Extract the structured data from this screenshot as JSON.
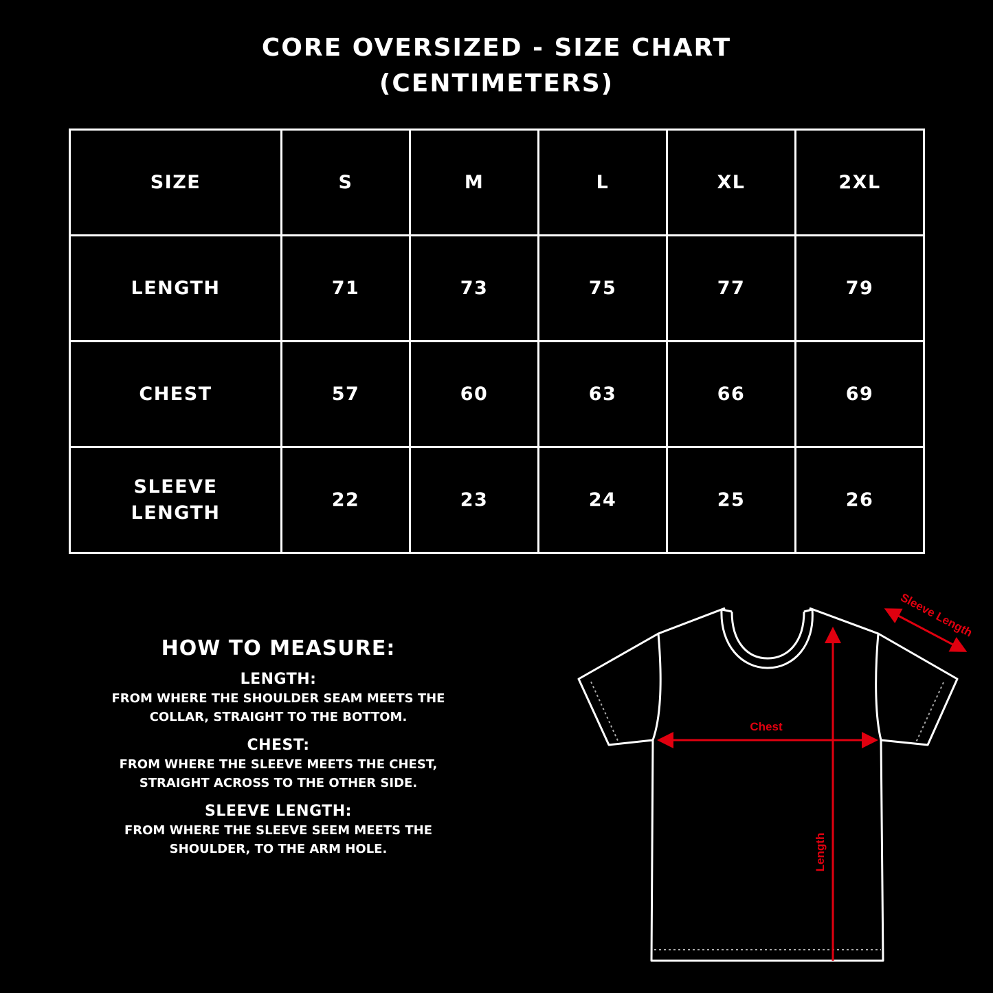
{
  "title": {
    "line1": "CORE OVERSIZED - SIZE CHART",
    "line2": "(CENTIMETERS)"
  },
  "table": {
    "header": [
      "SIZE",
      "S",
      "M",
      "L",
      "XL",
      "2XL"
    ],
    "rows": [
      {
        "label": "LENGTH",
        "values": [
          "71",
          "73",
          "75",
          "77",
          "79"
        ]
      },
      {
        "label": "CHEST",
        "values": [
          "57",
          "60",
          "63",
          "66",
          "69"
        ]
      },
      {
        "label_line1": "SLEEVE",
        "label_line2": "LENGTH",
        "values": [
          "22",
          "23",
          "24",
          "25",
          "26"
        ]
      }
    ]
  },
  "how_to_measure": {
    "heading": "HOW TO MEASURE:",
    "items": [
      {
        "title": "LENGTH:",
        "line1": "FROM WHERE THE SHOULDER SEAM MEETS THE",
        "line2": "COLLAR, STRAIGHT TO THE BOTTOM."
      },
      {
        "title": "CHEST:",
        "line1": "FROM WHERE THE SLEEVE MEETS THE CHEST,",
        "line2": "STRAIGHT ACROSS TO THE OTHER SIDE."
      },
      {
        "title": "SLEEVE LENGTH:",
        "line1": "FROM WHERE THE SLEEVE SEEM MEETS THE",
        "line2": "SHOULDER, TO THE ARM HOLE."
      }
    ]
  },
  "diagram": {
    "chest_label": "Chest",
    "length_label": "Length",
    "sleeve_label": "Sleeve Length",
    "arrow_color": "#e0000f",
    "outline_color": "#ffffff"
  }
}
